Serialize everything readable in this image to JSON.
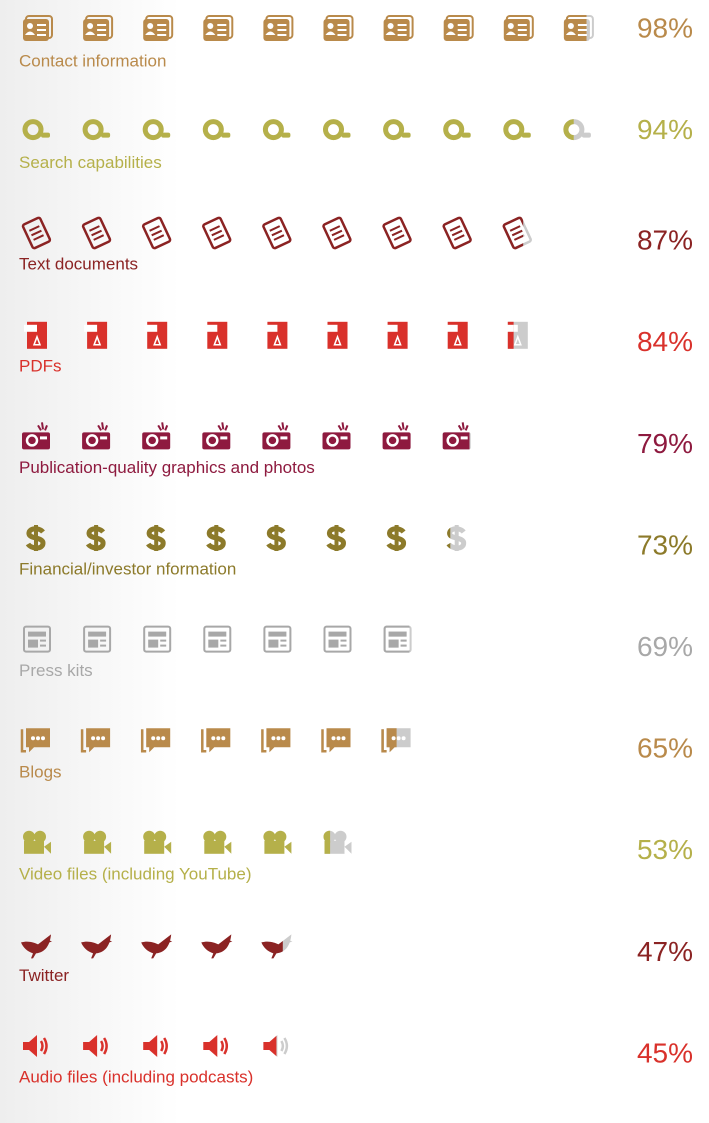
{
  "chart_data": {
    "type": "pictograph",
    "categories": [
      "Contact information",
      "Search capabilities",
      "Text documents",
      "PDFs",
      "Publication-quality graphics and photos",
      "Financial/investor nformation",
      "Press kits",
      "Blogs",
      "Video files  (including YouTube)",
      "Twitter",
      "Audio files (including podcasts)"
    ],
    "values": [
      98,
      94,
      87,
      84,
      79,
      73,
      69,
      65,
      53,
      47,
      45
    ],
    "value_labels": [
      "98%",
      "94%",
      "87%",
      "84%",
      "79%",
      "73%",
      "69%",
      "65%",
      "53%",
      "47%",
      "45%"
    ],
    "colors": [
      "#b98a4b",
      "#b5b04a",
      "#8b2323",
      "#d9312b",
      "#8e1a3f",
      "#8c7a2a",
      "#a8a8a8",
      "#b98a4b",
      "#b5b04a",
      "#8b2323",
      "#d9312b"
    ]
  }
}
